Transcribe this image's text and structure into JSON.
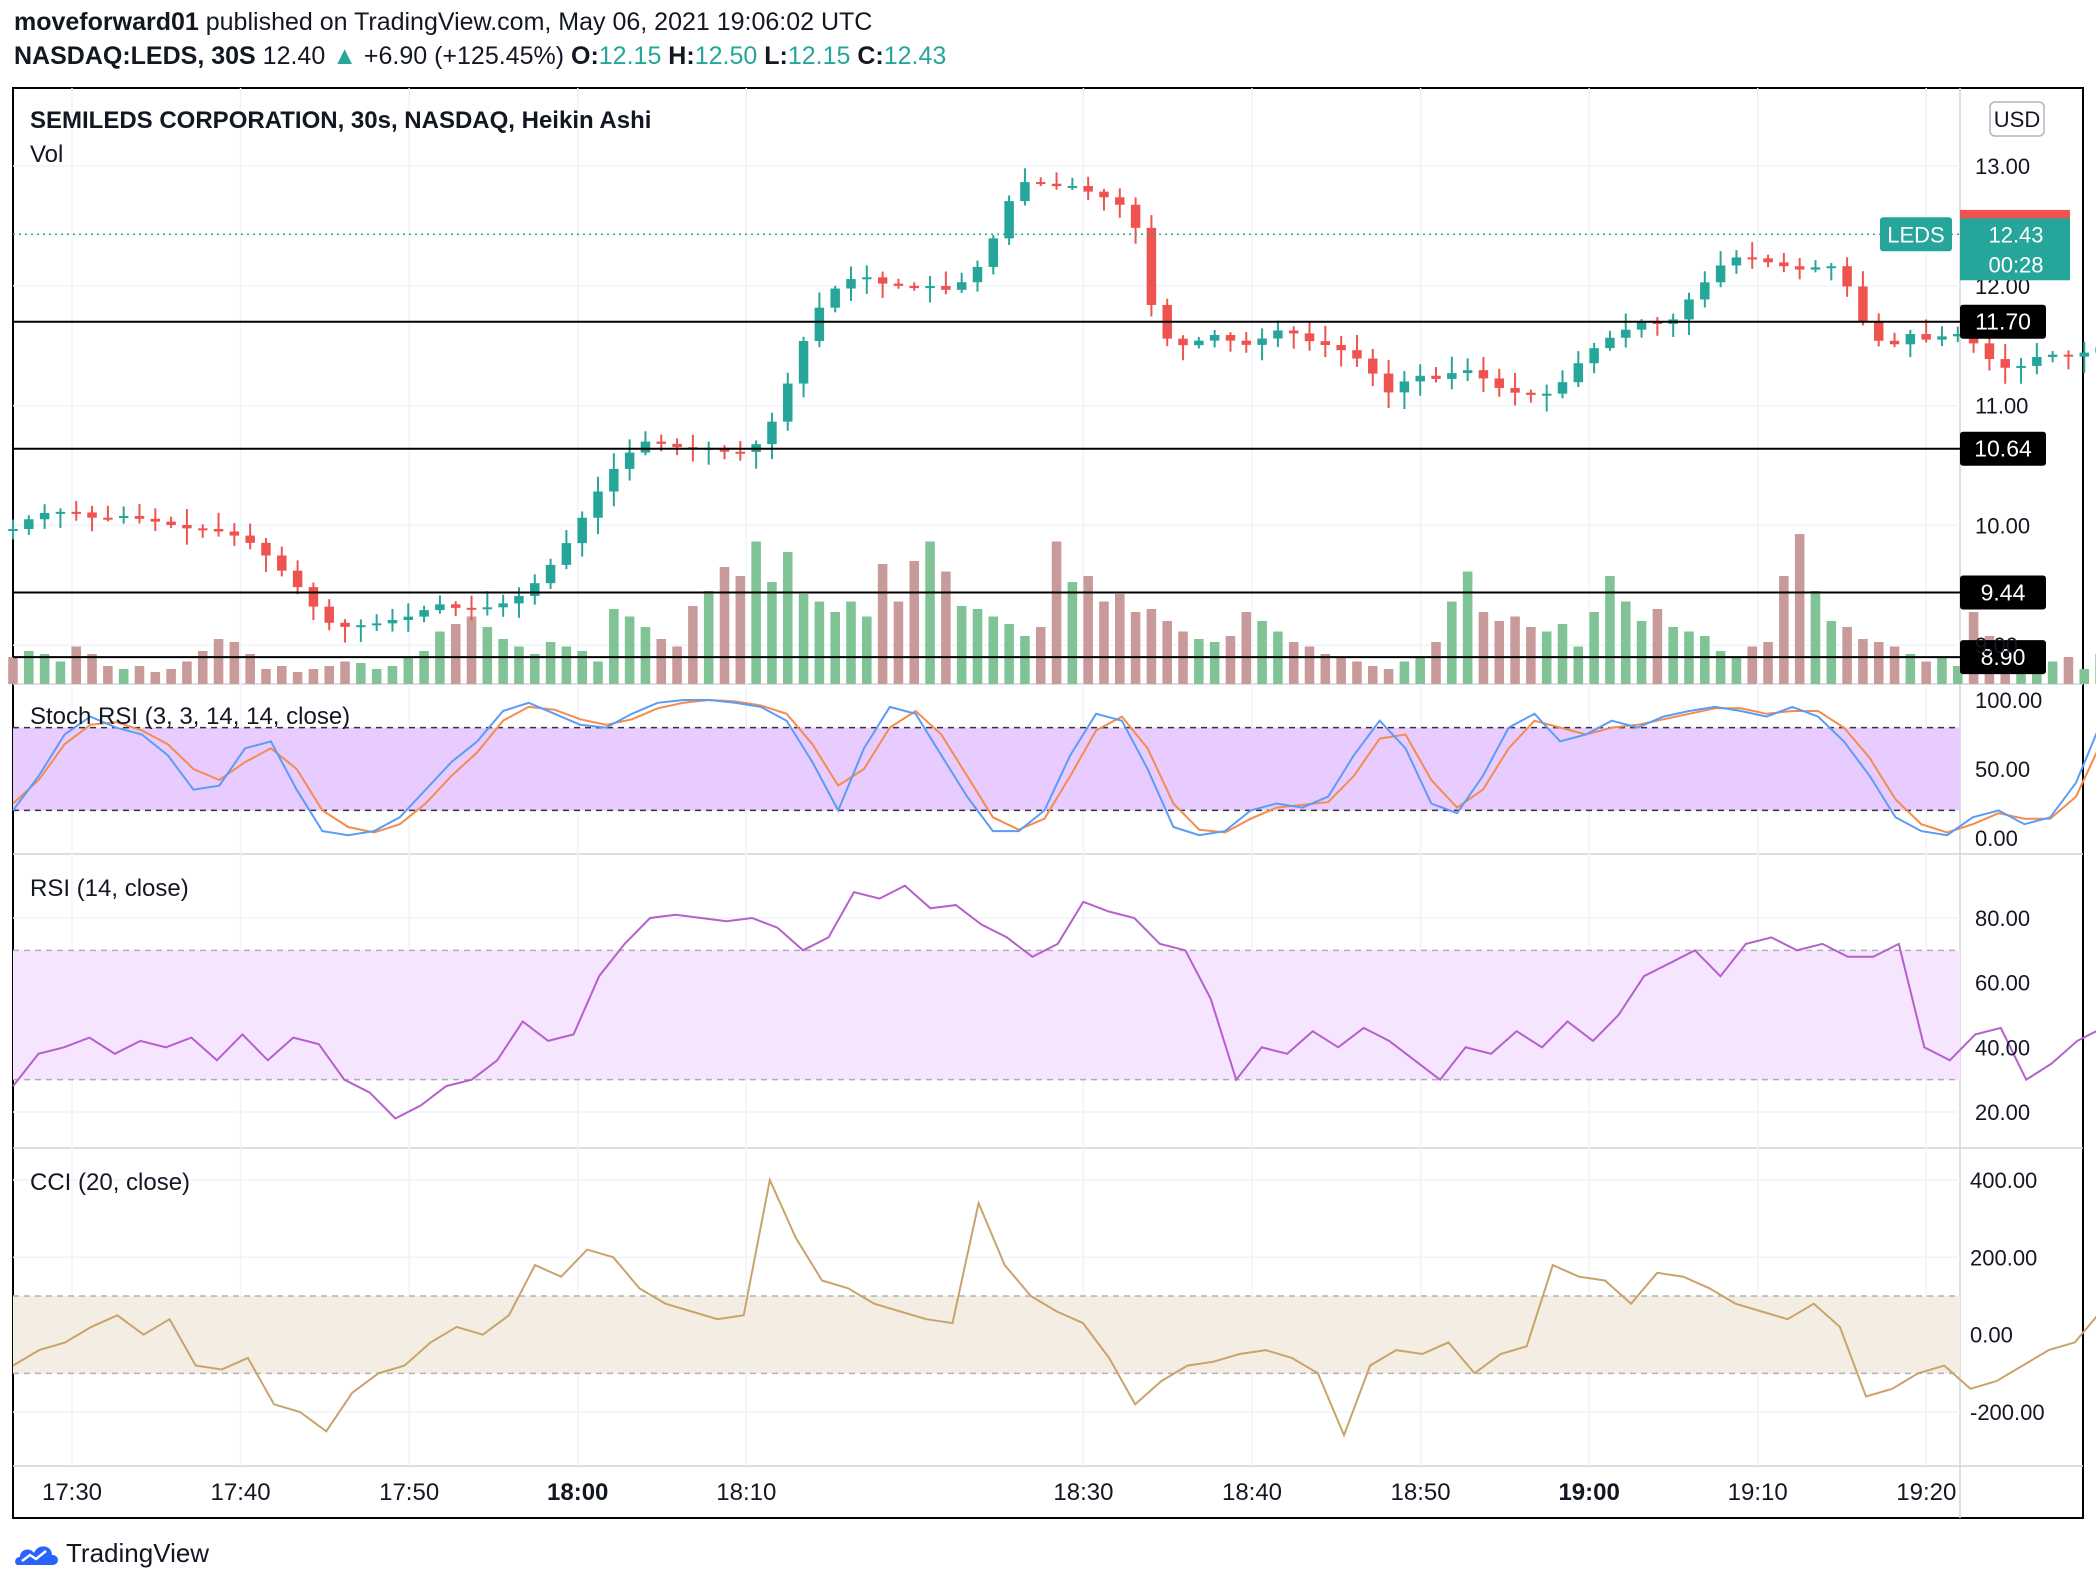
{
  "header": {
    "publisher": "moveforward01",
    "published_text": "published on TradingView.com, May 06, 2021 19:06:02 UTC",
    "symbol": "NASDAQ:LEDS, 30S",
    "last": "12.40",
    "change": "+6.90 (+125.45%)",
    "o_label": "O:",
    "o": "12.15",
    "h_label": "H:",
    "h": "12.50",
    "l_label": "L:",
    "l": "12.15",
    "c_label": "C:",
    "c": "12.43"
  },
  "footer": {
    "brand": "TradingView"
  },
  "colors": {
    "up": "#26a69a",
    "down": "#ef5350",
    "vol_up": "#80c496",
    "vol_down": "#c99a9a",
    "stoch_k": "#5b9cf6",
    "stoch_d": "#f48c4d",
    "stoch_band": "#e8ccff",
    "rsi": "#b660cc",
    "rsi_band": "#f5e5ff",
    "cci": "#c9a46a",
    "cci_band": "#f3ede4"
  },
  "chart_data": {
    "type": "candlestick",
    "title": "SEMILEDS CORPORATION, 30s, NASDAQ, Heikin Ashi",
    "volume_label": "Vol",
    "currency": "USD",
    "symbol_tag": "LEDS",
    "last_price": "12.43",
    "countdown": "00:28",
    "high_tag": "12.50",
    "price_ticks": [
      "13.00",
      "12.00",
      "11.00",
      "10.00",
      "9.00"
    ],
    "price_ticks_values": [
      13,
      12,
      11,
      10,
      9
    ],
    "price_range": [
      8.6,
      13.5
    ],
    "horizontal_lines": [
      {
        "value": 11.7,
        "label": "11.70"
      },
      {
        "value": 10.64,
        "label": "10.64"
      },
      {
        "value": 9.44,
        "label": "9.44"
      },
      {
        "value": 8.9,
        "label": "8.90"
      }
    ],
    "time_labels": [
      "17:30",
      "17:40",
      "17:50",
      "18:00",
      "18:10",
      "18:30",
      "18:40",
      "18:50",
      "19:00",
      "19:10",
      "19:20"
    ],
    "time_labels_bold": [
      "18:00",
      "19:00"
    ],
    "time_minutes": [
      -30,
      -20,
      -10,
      0,
      10,
      30,
      40,
      50,
      60,
      70,
      80
    ],
    "time_range_minutes": [
      -33.5,
      82
    ],
    "close_anchors": [
      [
        -33.5,
        9.97
      ],
      [
        -32,
        10.1
      ],
      [
        -30,
        10.12
      ],
      [
        -28.5,
        10.05
      ],
      [
        -27,
        10.08
      ],
      [
        -25,
        10.03
      ],
      [
        -23,
        9.97
      ],
      [
        -22,
        9.97
      ],
      [
        -21,
        9.94
      ],
      [
        -20,
        9.9
      ],
      [
        -19,
        9.82
      ],
      [
        -18,
        9.68
      ],
      [
        -17,
        9.55
      ],
      [
        -16,
        9.38
      ],
      [
        -15,
        9.2
      ],
      [
        -14,
        9.15
      ],
      [
        -12,
        9.18
      ],
      [
        -10,
        9.24
      ],
      [
        -9,
        9.3
      ],
      [
        -8,
        9.35
      ],
      [
        -7,
        9.3
      ],
      [
        -5,
        9.32
      ],
      [
        -4,
        9.37
      ],
      [
        -3,
        9.45
      ],
      [
        -2,
        9.6
      ],
      [
        -1,
        9.78
      ],
      [
        0,
        10.0
      ],
      [
        1,
        10.24
      ],
      [
        2,
        10.45
      ],
      [
        3,
        10.6
      ],
      [
        4,
        10.7
      ],
      [
        5,
        10.68
      ],
      [
        6,
        10.65
      ],
      [
        7,
        10.64
      ],
      [
        8,
        10.65
      ],
      [
        9,
        10.6
      ],
      [
        10,
        10.62
      ],
      [
        11,
        10.72
      ],
      [
        12,
        11.0
      ],
      [
        13,
        11.4
      ],
      [
        14,
        11.75
      ],
      [
        15,
        11.95
      ],
      [
        16,
        12.05
      ],
      [
        17,
        12.08
      ],
      [
        18,
        12.02
      ],
      [
        19,
        12.0
      ],
      [
        20,
        11.98
      ],
      [
        21,
        12.0
      ],
      [
        22,
        11.96
      ],
      [
        23,
        12.05
      ],
      [
        24,
        12.2
      ],
      [
        25,
        12.5
      ],
      [
        26,
        12.85
      ],
      [
        27,
        12.88
      ],
      [
        28,
        12.82
      ],
      [
        29,
        12.85
      ],
      [
        30,
        12.8
      ],
      [
        31,
        12.75
      ],
      [
        32,
        12.7
      ],
      [
        33,
        12.55
      ],
      [
        33.5,
        12.2
      ],
      [
        34,
        11.85
      ],
      [
        35,
        11.55
      ],
      [
        36,
        11.5
      ],
      [
        37,
        11.55
      ],
      [
        38,
        11.6
      ],
      [
        39,
        11.52
      ],
      [
        40,
        11.5
      ],
      [
        41,
        11.6
      ],
      [
        42,
        11.65
      ],
      [
        43,
        11.55
      ],
      [
        44,
        11.52
      ],
      [
        45,
        11.48
      ],
      [
        46,
        11.42
      ],
      [
        47,
        11.3
      ],
      [
        48,
        11.1
      ],
      [
        49,
        11.2
      ],
      [
        50,
        11.25
      ],
      [
        51,
        11.22
      ],
      [
        52,
        11.28
      ],
      [
        53,
        11.3
      ],
      [
        54,
        11.2
      ],
      [
        55,
        11.12
      ],
      [
        56,
        11.1
      ],
      [
        57,
        11.08
      ],
      [
        58,
        11.12
      ],
      [
        59,
        11.3
      ],
      [
        60,
        11.45
      ],
      [
        61,
        11.55
      ],
      [
        62,
        11.62
      ],
      [
        63,
        11.7
      ],
      [
        64,
        11.68
      ],
      [
        65,
        11.72
      ],
      [
        66,
        11.9
      ],
      [
        67,
        12.05
      ],
      [
        68,
        12.2
      ],
      [
        69,
        12.25
      ],
      [
        70,
        12.22
      ],
      [
        71,
        12.18
      ],
      [
        72,
        12.15
      ],
      [
        73,
        12.12
      ],
      [
        74,
        12.2
      ],
      [
        75,
        12.1
      ],
      [
        76,
        11.75
      ],
      [
        77,
        11.55
      ],
      [
        78,
        11.5
      ],
      [
        79,
        11.6
      ],
      [
        80,
        11.55
      ],
      [
        81,
        11.58
      ],
      [
        82,
        11.6
      ],
      [
        83,
        11.5
      ],
      [
        84,
        11.35
      ],
      [
        85,
        11.3
      ],
      [
        86,
        11.35
      ],
      [
        87,
        11.45
      ],
      [
        88,
        11.4
      ],
      [
        89,
        11.42
      ],
      [
        90,
        11.48
      ],
      [
        91,
        11.5
      ],
      [
        92,
        11.55
      ],
      [
        93,
        11.8
      ],
      [
        94,
        12.2
      ],
      [
        95,
        12.43
      ]
    ],
    "volume_heights": [
      0.18,
      0.22,
      0.2,
      0.15,
      0.25,
      0.2,
      0.12,
      0.1,
      0.12,
      0.08,
      0.1,
      0.15,
      0.22,
      0.3,
      0.28,
      0.2,
      0.1,
      0.12,
      0.08,
      0.1,
      0.12,
      0.15,
      0.14,
      0.1,
      0.12,
      0.18,
      0.22,
      0.35,
      0.4,
      0.45,
      0.38,
      0.3,
      0.25,
      0.2,
      0.28,
      0.25,
      0.22,
      0.15,
      0.5,
      0.45,
      0.38,
      0.3,
      0.25,
      0.52,
      0.62,
      0.78,
      0.72,
      0.95,
      0.68,
      0.88,
      0.6,
      0.55,
      0.48,
      0.55,
      0.45,
      0.8,
      0.55,
      0.82,
      0.95,
      0.75,
      0.52,
      0.5,
      0.45,
      0.4,
      0.32,
      0.38,
      0.95,
      0.68,
      0.72,
      0.55,
      0.6,
      0.48,
      0.5,
      0.42,
      0.35,
      0.3,
      0.28,
      0.32,
      0.48,
      0.42,
      0.35,
      0.28,
      0.25,
      0.2,
      0.18,
      0.15,
      0.12,
      0.1,
      0.15,
      0.18,
      0.28,
      0.55,
      0.75,
      0.48,
      0.42,
      0.45,
      0.38,
      0.35,
      0.4,
      0.25,
      0.48,
      0.72,
      0.55,
      0.42,
      0.5,
      0.38,
      0.35,
      0.32,
      0.22,
      0.18,
      0.25,
      0.28,
      0.72,
      1.0,
      0.62,
      0.42,
      0.38,
      0.3,
      0.28,
      0.25,
      0.2,
      0.15,
      0.18,
      0.12,
      0.48,
      0.32,
      0.25,
      0.15,
      0.12,
      0.15,
      0.18,
      0.1,
      0.2,
      0.35,
      0.6,
      0.92,
      0.58,
      0.05
    ],
    "volume_max_bars_height_label": "",
    "stoch_rsi": {
      "label": "Stoch RSI (3, 3, 14, 14, close)",
      "ticks": [
        "100.00",
        "50.00",
        "0.00"
      ],
      "tick_values": [
        100,
        50,
        0
      ],
      "upper": 80,
      "lower": 20,
      "k": [
        20,
        45,
        75,
        88,
        80,
        75,
        60,
        35,
        38,
        65,
        70,
        35,
        5,
        2,
        5,
        15,
        35,
        55,
        70,
        92,
        98,
        90,
        82,
        80,
        90,
        98,
        100,
        100,
        98,
        95,
        85,
        55,
        20,
        65,
        95,
        90,
        60,
        30,
        5,
        5,
        20,
        60,
        90,
        85,
        50,
        8,
        2,
        5,
        20,
        25,
        22,
        30,
        60,
        85,
        65,
        25,
        18,
        45,
        80,
        90,
        70,
        75,
        85,
        80,
        88,
        92,
        95,
        92,
        88,
        95,
        88,
        70,
        45,
        15,
        5,
        2,
        15,
        20,
        10,
        15,
        40,
        85,
        95,
        100,
        100
      ],
      "d": [
        25,
        42,
        68,
        82,
        84,
        78,
        68,
        50,
        42,
        55,
        65,
        50,
        20,
        8,
        4,
        10,
        25,
        45,
        62,
        85,
        95,
        93,
        86,
        82,
        86,
        94,
        98,
        100,
        99,
        96,
        90,
        68,
        38,
        50,
        80,
        92,
        75,
        45,
        15,
        6,
        14,
        45,
        78,
        88,
        65,
        25,
        6,
        4,
        14,
        22,
        24,
        26,
        45,
        72,
        75,
        42,
        22,
        35,
        65,
        85,
        80,
        75,
        80,
        82,
        86,
        90,
        94,
        94,
        90,
        92,
        92,
        80,
        58,
        28,
        10,
        4,
        10,
        18,
        14,
        14,
        30,
        70,
        90,
        98,
        100
      ]
    },
    "rsi": {
      "label": "RSI (14, close)",
      "ticks": [
        "80.00",
        "60.00",
        "40.00",
        "20.00"
      ],
      "tick_values": [
        80,
        60,
        40,
        20
      ],
      "upper": 70,
      "lower": 30,
      "values": [
        28,
        38,
        40,
        43,
        38,
        42,
        40,
        43,
        36,
        44,
        36,
        43,
        41,
        30,
        26,
        18,
        22,
        28,
        30,
        36,
        48,
        42,
        44,
        62,
        72,
        80,
        81,
        80,
        79,
        80,
        77,
        70,
        74,
        88,
        86,
        90,
        83,
        84,
        78,
        74,
        68,
        72,
        85,
        82,
        80,
        72,
        70,
        55,
        30,
        40,
        38,
        45,
        40,
        46,
        42,
        36,
        30,
        40,
        38,
        45,
        40,
        48,
        42,
        50,
        62,
        66,
        70,
        62,
        72,
        74,
        70,
        72,
        68,
        68,
        72,
        40,
        36,
        44,
        46,
        30,
        35,
        42,
        46,
        52,
        66,
        75
      ]
    },
    "cci": {
      "label": "CCI (20, close)",
      "ticks": [
        "400.00",
        "200.00",
        "0.00",
        "-200.00"
      ],
      "tick_values": [
        400,
        200,
        0,
        -200
      ],
      "upper": 100,
      "lower": -100,
      "values": [
        -80,
        -40,
        -20,
        20,
        50,
        0,
        40,
        -80,
        -90,
        -60,
        -180,
        -200,
        -250,
        -150,
        -100,
        -80,
        -20,
        20,
        0,
        50,
        180,
        150,
        220,
        200,
        120,
        80,
        60,
        40,
        50,
        400,
        250,
        140,
        120,
        80,
        60,
        40,
        30,
        340,
        180,
        100,
        60,
        30,
        -60,
        -180,
        -120,
        -80,
        -70,
        -50,
        -40,
        -60,
        -100,
        -260,
        -80,
        -40,
        -50,
        -20,
        -100,
        -50,
        -30,
        180,
        150,
        140,
        80,
        160,
        150,
        120,
        80,
        60,
        40,
        80,
        20,
        -160,
        -140,
        -100,
        -80,
        -140,
        -120,
        -80,
        -40,
        -20,
        60,
        120,
        270,
        220
      ]
    }
  }
}
